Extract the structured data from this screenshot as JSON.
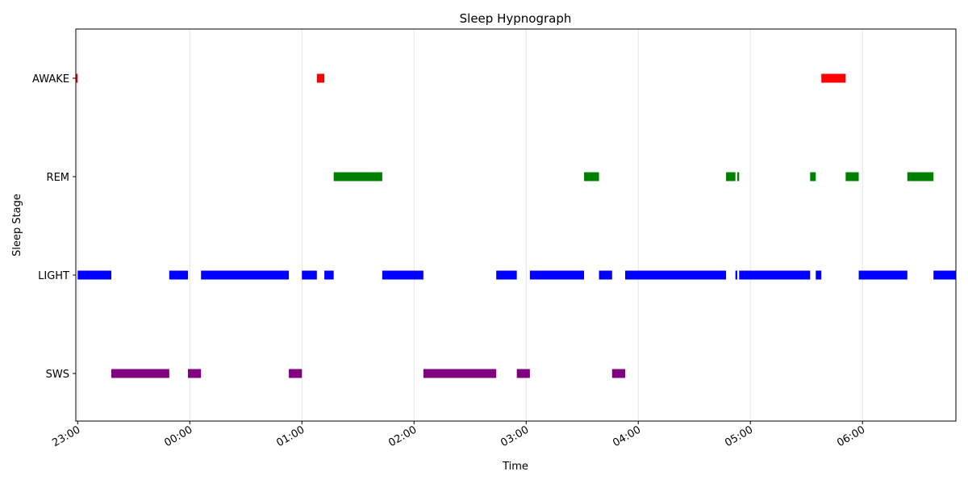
{
  "chart_data": {
    "type": "bar",
    "title": "Sleep Hypnograph",
    "xlabel": "Time",
    "ylabel": "Sleep Stage",
    "x_ticks": [
      "23:00",
      "00:00",
      "01:00",
      "02:00",
      "03:00",
      "04:00",
      "05:00",
      "06:00"
    ],
    "x_range": [
      "22:59",
      "06:50"
    ],
    "y_categories": [
      "SWS",
      "LIGHT",
      "REM",
      "AWAKE"
    ],
    "grid": "vertical",
    "stage_colors": {
      "AWAKE": "#ff0000",
      "REM": "#008000",
      "LIGHT": "#0000ff",
      "SWS": "#800080"
    },
    "segments": [
      {
        "stage": "AWAKE",
        "start": "22:59",
        "end": "23:00"
      },
      {
        "stage": "LIGHT",
        "start": "23:00",
        "end": "23:18"
      },
      {
        "stage": "SWS",
        "start": "23:18",
        "end": "23:49"
      },
      {
        "stage": "LIGHT",
        "start": "23:49",
        "end": "23:59"
      },
      {
        "stage": "SWS",
        "start": "23:59",
        "end": "00:06"
      },
      {
        "stage": "LIGHT",
        "start": "00:06",
        "end": "00:53"
      },
      {
        "stage": "SWS",
        "start": "00:53",
        "end": "01:00"
      },
      {
        "stage": "LIGHT",
        "start": "01:00",
        "end": "01:08"
      },
      {
        "stage": "AWAKE",
        "start": "01:08",
        "end": "01:12"
      },
      {
        "stage": "LIGHT",
        "start": "01:12",
        "end": "01:17"
      },
      {
        "stage": "REM",
        "start": "01:17",
        "end": "01:43"
      },
      {
        "stage": "LIGHT",
        "start": "01:43",
        "end": "02:05"
      },
      {
        "stage": "SWS",
        "start": "02:05",
        "end": "02:44"
      },
      {
        "stage": "LIGHT",
        "start": "02:44",
        "end": "02:55"
      },
      {
        "stage": "SWS",
        "start": "02:55",
        "end": "03:02"
      },
      {
        "stage": "LIGHT",
        "start": "03:02",
        "end": "03:31"
      },
      {
        "stage": "REM",
        "start": "03:31",
        "end": "03:39"
      },
      {
        "stage": "LIGHT",
        "start": "03:39",
        "end": "03:46"
      },
      {
        "stage": "SWS",
        "start": "03:46",
        "end": "03:53"
      },
      {
        "stage": "LIGHT",
        "start": "03:53",
        "end": "04:47"
      },
      {
        "stage": "REM",
        "start": "04:47",
        "end": "04:52"
      },
      {
        "stage": "LIGHT",
        "start": "04:52",
        "end": "04:53"
      },
      {
        "stage": "REM",
        "start": "04:53",
        "end": "04:54"
      },
      {
        "stage": "LIGHT",
        "start": "04:54",
        "end": "05:32"
      },
      {
        "stage": "REM",
        "start": "05:32",
        "end": "05:35"
      },
      {
        "stage": "LIGHT",
        "start": "05:35",
        "end": "05:38"
      },
      {
        "stage": "AWAKE",
        "start": "05:38",
        "end": "05:51"
      },
      {
        "stage": "REM",
        "start": "05:51",
        "end": "05:58"
      },
      {
        "stage": "LIGHT",
        "start": "05:58",
        "end": "06:24"
      },
      {
        "stage": "REM",
        "start": "06:24",
        "end": "06:38"
      },
      {
        "stage": "LIGHT",
        "start": "06:38",
        "end": "06:50"
      }
    ]
  }
}
